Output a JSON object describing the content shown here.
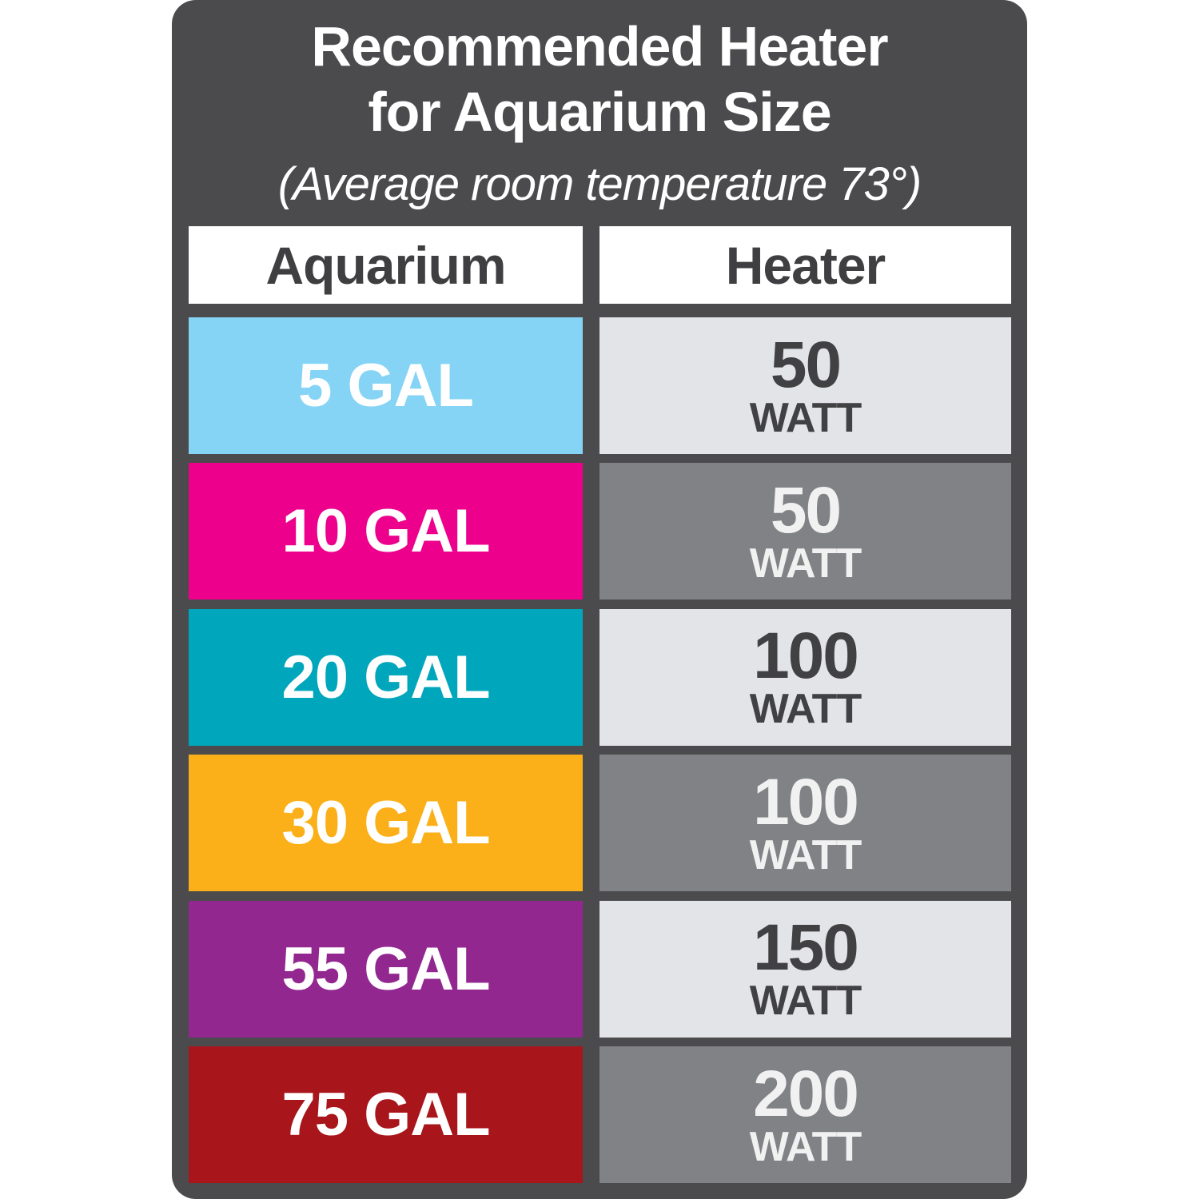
{
  "title_line1": "Recommended Heater",
  "title_line2": "for Aquarium Size",
  "subtitle": "(Average room temperature 73°)",
  "headers": {
    "aquarium": "Aquarium",
    "heater": "Heater"
  },
  "rows": [
    {
      "aquarium": "5 GAL",
      "watts": "50",
      "unit": "WATT",
      "color": "#86d4f5",
      "shade": "light"
    },
    {
      "aquarium": "10 GAL",
      "watts": "50",
      "unit": "WATT",
      "color": "#ec008c",
      "shade": "dark"
    },
    {
      "aquarium": "20 GAL",
      "watts": "100",
      "unit": "WATT",
      "color": "#00a6bb",
      "shade": "light"
    },
    {
      "aquarium": "30 GAL",
      "watts": "100",
      "unit": "WATT",
      "color": "#fbb01a",
      "shade": "dark"
    },
    {
      "aquarium": "55 GAL",
      "watts": "150",
      "unit": "WATT",
      "color": "#92278f",
      "shade": "light"
    },
    {
      "aquarium": "75 GAL",
      "watts": "200",
      "unit": "WATT",
      "color": "#a8151b",
      "shade": "dark"
    }
  ]
}
